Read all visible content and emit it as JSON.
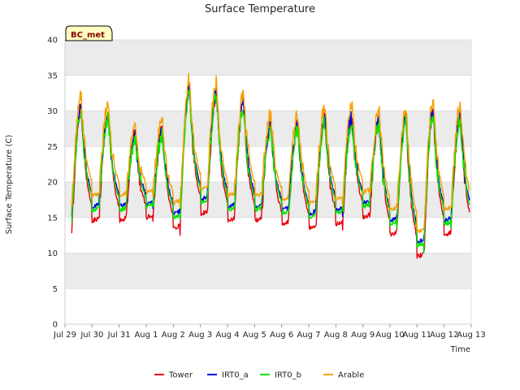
{
  "chart_data": {
    "type": "line",
    "title": "Surface Temperature",
    "xlabel": "Time",
    "ylabel": "Surface Temperature (C)",
    "badge": "BC_met",
    "x_ticks": [
      {
        "day": 0,
        "label": "Jul 29"
      },
      {
        "day": 1,
        "label": "Jul 30"
      },
      {
        "day": 2,
        "label": "Jul 31"
      },
      {
        "day": 3,
        "label": "Aug 1"
      },
      {
        "day": 4,
        "label": "Aug 2"
      },
      {
        "day": 5,
        "label": "Aug 3"
      },
      {
        "day": 6,
        "label": "Aug 4"
      },
      {
        "day": 7,
        "label": "Aug 5"
      },
      {
        "day": 8,
        "label": "Aug 6"
      },
      {
        "day": 9,
        "label": "Aug 7"
      },
      {
        "day": 10,
        "label": "Aug 8"
      },
      {
        "day": 11,
        "label": "Aug 9"
      },
      {
        "day": 12,
        "label": "Aug 10"
      },
      {
        "day": 13,
        "label": "Aug 11"
      },
      {
        "day": 14,
        "label": "Aug 12"
      },
      {
        "day": 15,
        "label": "Aug 13"
      }
    ],
    "xlim": [
      0,
      15
    ],
    "ylim": [
      0,
      40
    ],
    "y_ticks": [
      0,
      5,
      10,
      15,
      20,
      25,
      30,
      35,
      40
    ],
    "grid": true,
    "legend_position": "bottom",
    "x_note": "x values are days since Jul 29",
    "daily": [
      {
        "day": "Jul 29",
        "min": 13.5,
        "max": 30.5
      },
      {
        "day": "Jul 30",
        "min": 15.0,
        "max": 29.5
      },
      {
        "day": "Jul 31",
        "min": 15.0,
        "max": 26.5
      },
      {
        "day": "Aug 1",
        "min": 15.5,
        "max": 27.0
      },
      {
        "day": "Aug 2",
        "min": 14.0,
        "max": 33.0
      },
      {
        "day": "Aug 3",
        "min": 16.0,
        "max": 32.5
      },
      {
        "day": "Aug 4",
        "min": 15.0,
        "max": 31.0
      },
      {
        "day": "Aug 5",
        "min": 15.0,
        "max": 28.0
      },
      {
        "day": "Aug 6",
        "min": 14.5,
        "max": 28.0
      },
      {
        "day": "Aug 7",
        "min": 14.0,
        "max": 29.0
      },
      {
        "day": "Aug 8",
        "min": 14.5,
        "max": 29.0
      },
      {
        "day": "Aug 9",
        "min": 15.5,
        "max": 28.5
      },
      {
        "day": "Aug 10",
        "min": 13.0,
        "max": 29.0
      },
      {
        "day": "Aug 11",
        "min": 10.0,
        "max": 30.0
      },
      {
        "day": "Aug 12",
        "min": 13.0,
        "max": 29.5
      }
    ],
    "series": [
      {
        "name": "Tower",
        "color": "#e8000b",
        "min_offset": -0.5,
        "max_offset": 0.2
      },
      {
        "name": "IRT0_a",
        "color": "#0000e6",
        "min_offset": 1.5,
        "max_offset": 0.0
      },
      {
        "name": "IRT0_b",
        "color": "#00e600",
        "min_offset": 1.0,
        "max_offset": -0.5
      },
      {
        "name": "Arable",
        "color": "#f5a000",
        "min_offset": 3.0,
        "max_offset": 1.5
      }
    ],
    "colors": {
      "band": "#ebebeb",
      "grid": "#d9d9d9",
      "badge_fill": "#ffffc0",
      "badge_text": "#8b0000"
    }
  }
}
